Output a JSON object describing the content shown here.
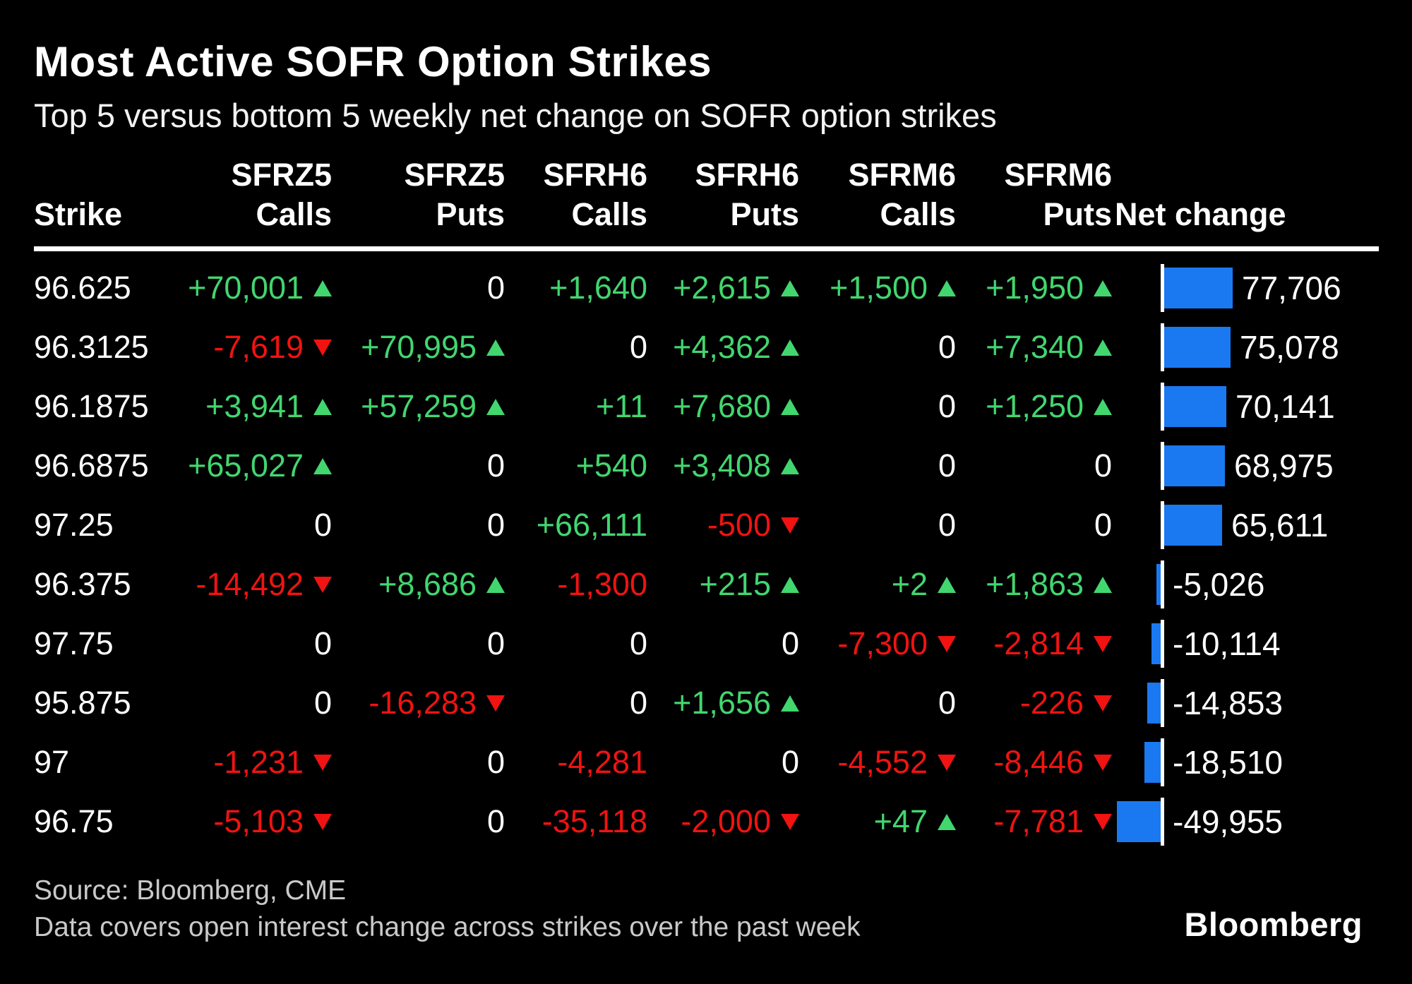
{
  "title": "Most Active SOFR Option Strikes",
  "subtitle": "Top 5 versus bottom 5 weekly net change on SOFR option strikes",
  "colors": {
    "positive": "#42d66f",
    "negative": "#f01311",
    "neutral": "#ffffff",
    "bar": "#1a79f1",
    "background": "#000000",
    "text": "#ffffff",
    "source_text": "#c9c9c9"
  },
  "columns": [
    {
      "id": "strike",
      "line1": "",
      "line2": "Strike"
    },
    {
      "id": "sfrz5-calls",
      "line1": "SFRZ5",
      "line2": "Calls"
    },
    {
      "id": "sfrz5-puts",
      "line1": "SFRZ5",
      "line2": "Puts"
    },
    {
      "id": "sfrh6-calls",
      "line1": "SFRH6",
      "line2": "Calls"
    },
    {
      "id": "sfrh6-puts",
      "line1": "SFRH6",
      "line2": "Puts"
    },
    {
      "id": "sfrm6-calls",
      "line1": "SFRM6",
      "line2": "Calls"
    },
    {
      "id": "sfrm6-puts",
      "line1": "SFRM6",
      "line2": "Puts"
    },
    {
      "id": "net-change",
      "line1": "",
      "line2": "Net change"
    }
  ],
  "table": {
    "rows": [
      {
        "strike": "96.625",
        "cells": [
          {
            "v": "+70,001",
            "arrow": "up"
          },
          {
            "v": "0",
            "arrow": null
          },
          {
            "v": "+1,640",
            "arrow": null
          },
          {
            "v": "+2,615",
            "arrow": "up"
          },
          {
            "v": "+1,500",
            "arrow": "up"
          },
          {
            "v": "+1,950",
            "arrow": "up"
          }
        ],
        "net": {
          "label": "77,706",
          "value": 77706
        }
      },
      {
        "strike": "96.3125",
        "cells": [
          {
            "v": "-7,619",
            "arrow": "down"
          },
          {
            "v": "+70,995",
            "arrow": "up"
          },
          {
            "v": "0",
            "arrow": null
          },
          {
            "v": "+4,362",
            "arrow": "up"
          },
          {
            "v": "0",
            "arrow": null
          },
          {
            "v": "+7,340",
            "arrow": "up"
          }
        ],
        "net": {
          "label": "75,078",
          "value": 75078
        }
      },
      {
        "strike": "96.1875",
        "cells": [
          {
            "v": "+3,941",
            "arrow": "up"
          },
          {
            "v": "+57,259",
            "arrow": "up"
          },
          {
            "v": "+11",
            "arrow": null
          },
          {
            "v": "+7,680",
            "arrow": "up"
          },
          {
            "v": "0",
            "arrow": null
          },
          {
            "v": "+1,250",
            "arrow": "up"
          }
        ],
        "net": {
          "label": "70,141",
          "value": 70141
        }
      },
      {
        "strike": "96.6875",
        "cells": [
          {
            "v": "+65,027",
            "arrow": "up"
          },
          {
            "v": "0",
            "arrow": null
          },
          {
            "v": "+540",
            "arrow": null
          },
          {
            "v": "+3,408",
            "arrow": "up"
          },
          {
            "v": "0",
            "arrow": null
          },
          {
            "v": "0",
            "arrow": null
          }
        ],
        "net": {
          "label": "68,975",
          "value": 68975
        }
      },
      {
        "strike": "97.25",
        "cells": [
          {
            "v": "0",
            "arrow": null
          },
          {
            "v": "0",
            "arrow": null
          },
          {
            "v": "+66,111",
            "arrow": null
          },
          {
            "v": "-500",
            "arrow": "down"
          },
          {
            "v": "0",
            "arrow": null
          },
          {
            "v": "0",
            "arrow": null
          }
        ],
        "net": {
          "label": "65,611",
          "value": 65611
        }
      },
      {
        "strike": "96.375",
        "cells": [
          {
            "v": "-14,492",
            "arrow": "down"
          },
          {
            "v": "+8,686",
            "arrow": "up"
          },
          {
            "v": "-1,300",
            "arrow": null
          },
          {
            "v": "+215",
            "arrow": "up"
          },
          {
            "v": "+2",
            "arrow": "up"
          },
          {
            "v": "+1,863",
            "arrow": "up"
          }
        ],
        "net": {
          "label": "-5,026",
          "value": -5026
        }
      },
      {
        "strike": "97.75",
        "cells": [
          {
            "v": "0",
            "arrow": null
          },
          {
            "v": "0",
            "arrow": null
          },
          {
            "v": "0",
            "arrow": null
          },
          {
            "v": "0",
            "arrow": null
          },
          {
            "v": "-7,300",
            "arrow": "down"
          },
          {
            "v": "-2,814",
            "arrow": "down"
          }
        ],
        "net": {
          "label": "-10,114",
          "value": -10114
        }
      },
      {
        "strike": "95.875",
        "cells": [
          {
            "v": "0",
            "arrow": null
          },
          {
            "v": "-16,283",
            "arrow": "down"
          },
          {
            "v": "0",
            "arrow": null
          },
          {
            "v": "+1,656",
            "arrow": "up"
          },
          {
            "v": "0",
            "arrow": null
          },
          {
            "v": "-226",
            "arrow": "down"
          }
        ],
        "net": {
          "label": "-14,853",
          "value": -14853
        }
      },
      {
        "strike": "97",
        "cells": [
          {
            "v": "-1,231",
            "arrow": "down"
          },
          {
            "v": "0",
            "arrow": null
          },
          {
            "v": "-4,281",
            "arrow": null
          },
          {
            "v": "0",
            "arrow": null
          },
          {
            "v": "-4,552",
            "arrow": "down"
          },
          {
            "v": "-8,446",
            "arrow": "down"
          }
        ],
        "net": {
          "label": "-18,510",
          "value": -18510
        }
      },
      {
        "strike": "96.75",
        "cells": [
          {
            "v": "-5,103",
            "arrow": "down"
          },
          {
            "v": "0",
            "arrow": null
          },
          {
            "v": "-35,118",
            "arrow": null
          },
          {
            "v": "-2,000",
            "arrow": "down"
          },
          {
            "v": "+47",
            "arrow": "up"
          },
          {
            "v": "-7,781",
            "arrow": "down"
          }
        ],
        "net": {
          "label": "-49,955",
          "value": -49955
        }
      }
    ]
  },
  "source_line1": "Source: Bloomberg, CME",
  "source_line2": "Data covers open interest change across strikes over the past week",
  "logo_text": "Bloomberg",
  "chart_data": {
    "type": "table",
    "title": "Most Active SOFR Option Strikes",
    "subtitle": "Top 5 versus bottom 5 weekly net change on SOFR option strikes",
    "columns": [
      "Strike",
      "SFRZ5 Calls",
      "SFRZ5 Puts",
      "SFRH6 Calls",
      "SFRH6 Puts",
      "SFRM6 Calls",
      "SFRM6 Puts",
      "Net change"
    ],
    "rows": [
      [
        "96.625",
        70001,
        0,
        1640,
        2615,
        1500,
        1950,
        77706
      ],
      [
        "96.3125",
        -7619,
        70995,
        0,
        4362,
        0,
        7340,
        75078
      ],
      [
        "96.1875",
        3941,
        57259,
        11,
        7680,
        0,
        1250,
        70141
      ],
      [
        "96.6875",
        65027,
        0,
        540,
        3408,
        0,
        0,
        68975
      ],
      [
        "97.25",
        0,
        0,
        66111,
        -500,
        0,
        0,
        65611
      ],
      [
        "96.375",
        -14492,
        8686,
        -1300,
        215,
        2,
        1863,
        -5026
      ],
      [
        "97.75",
        0,
        0,
        0,
        0,
        -7300,
        -2814,
        -10114
      ],
      [
        "95.875",
        0,
        -16283,
        0,
        1656,
        0,
        -226,
        -14853
      ],
      [
        "97",
        -1231,
        0,
        -4281,
        0,
        -4552,
        -8446,
        -18510
      ],
      [
        "96.75",
        -5103,
        0,
        -35118,
        -2000,
        47,
        -7781,
        -49955
      ]
    ],
    "bar_column": "Net change",
    "bar_type": "horizontal-diverging-bar",
    "bar_axis_max": 77706,
    "bar_color": "#1a79f1",
    "positive_color": "#42d66f",
    "negative_color": "#f01311",
    "legend": "none",
    "grid": "off"
  }
}
